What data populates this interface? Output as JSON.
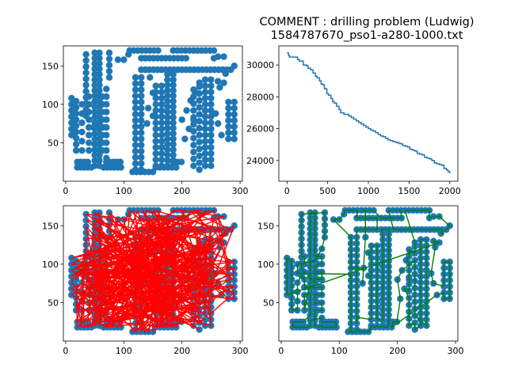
{
  "figure": {
    "title_line1": "COMMENT : drilling problem (Ludwig)",
    "title_line2": "1584787670_pso1-a280-1000.txt"
  },
  "colors": {
    "points": "#1f77b4",
    "random_tour": "#ff0000",
    "opt_tour": "#008000",
    "line": "#1f77b4"
  },
  "chart_data": [
    {
      "id": "points",
      "type": "scatter",
      "xlim": [
        -4,
        304
      ],
      "ylim": [
        0,
        176
      ],
      "xticks": [
        0,
        100,
        200,
        300
      ],
      "yticks": [
        50,
        100,
        150
      ],
      "series": [
        {
          "color": "#1f77b4",
          "points": []
        }
      ]
    },
    {
      "id": "convergence",
      "type": "line",
      "title": "",
      "xlim": [
        -100,
        2100
      ],
      "ylim": [
        22700,
        31200
      ],
      "xticks": [
        0,
        500,
        1000,
        1500,
        2000
      ],
      "yticks": [
        24000,
        26000,
        28000,
        30000
      ],
      "series": [
        {
          "color": "#1f77b4",
          "x": [
            0,
            20,
            30,
            100,
            130,
            150,
            170,
            200,
            240,
            260,
            290,
            320,
            350,
            370,
            400,
            420,
            440,
            460,
            490,
            510,
            540,
            560,
            580,
            610,
            640,
            660,
            680,
            700,
            730,
            760,
            790,
            820,
            850,
            880,
            910,
            940,
            970,
            1000,
            1030,
            1060,
            1090,
            1120,
            1150,
            1180,
            1210,
            1240,
            1270,
            1300,
            1330,
            1360,
            1390,
            1420,
            1450,
            1480,
            1510,
            1540,
            1570,
            1600,
            1630,
            1660,
            1690,
            1720,
            1750,
            1780,
            1810,
            1840,
            1870,
            1900,
            1930,
            1960,
            1980,
            2000
          ],
          "y": [
            30750,
            30600,
            30500,
            30500,
            30350,
            30250,
            30250,
            30000,
            29950,
            29800,
            29700,
            29500,
            29300,
            29200,
            29000,
            28800,
            28750,
            28500,
            28200,
            28100,
            27900,
            27700,
            27600,
            27400,
            27200,
            27000,
            27000,
            26900,
            26900,
            26800,
            26700,
            26600,
            26500,
            26400,
            26300,
            26200,
            26100,
            26000,
            25900,
            25850,
            25750,
            25650,
            25550,
            25500,
            25400,
            25300,
            25250,
            25200,
            25150,
            25100,
            25050,
            24950,
            24900,
            24850,
            24700,
            24650,
            24600,
            24450,
            24400,
            24350,
            24200,
            24150,
            24100,
            24000,
            23850,
            23800,
            23750,
            23700,
            23500,
            23400,
            23300,
            23200
          ]
        }
      ]
    },
    {
      "id": "random-tour",
      "type": "line",
      "xlim": [
        -4,
        304
      ],
      "ylim": [
        0,
        176
      ],
      "xticks": [
        0,
        100,
        200,
        300
      ],
      "yticks": [
        50,
        100,
        150
      ],
      "series": [
        {
          "color": "#ff0000",
          "tour": "random"
        },
        {
          "color": "#1f77b4",
          "type": "scatter"
        }
      ]
    },
    {
      "id": "optimized-tour",
      "type": "line",
      "xlim": [
        -4,
        304
      ],
      "ylim": [
        0,
        176
      ],
      "xticks": [
        0,
        100,
        200,
        300
      ],
      "yticks": [
        50,
        100,
        150
      ],
      "series": [
        {
          "color": "#1f77b4",
          "type": "scatter"
        },
        {
          "color": "#008000",
          "tour": "optimized"
        }
      ]
    }
  ]
}
